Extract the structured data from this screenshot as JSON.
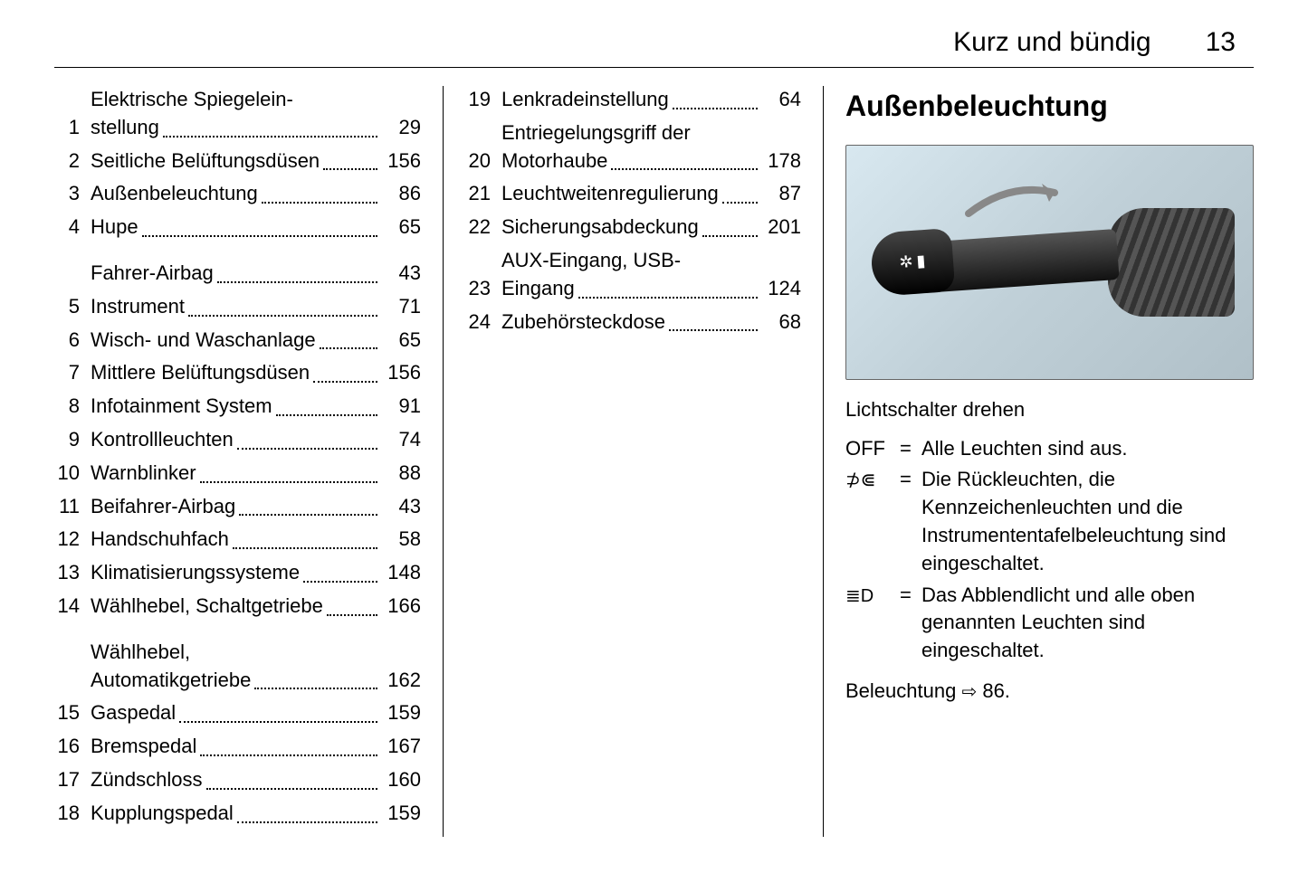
{
  "header": {
    "title": "Kurz und bündig",
    "page_number": "13"
  },
  "toc_col1": [
    {
      "num": "1",
      "label_lines": [
        "Elektrische Spiegelein-",
        "stellung"
      ],
      "page": "29"
    },
    {
      "num": "2",
      "label_lines": [
        "Seitliche Belüftungsdüsen"
      ],
      "page": "156"
    },
    {
      "num": "3",
      "label_lines": [
        "Außenbeleuchtung"
      ],
      "page": "86"
    },
    {
      "num": "4",
      "label_lines": [
        "Hupe"
      ],
      "page": "65"
    },
    {
      "num": "",
      "label_lines": [
        "Fahrer-Airbag"
      ],
      "page": "43",
      "gap_before": true
    },
    {
      "num": "5",
      "label_lines": [
        "Instrument"
      ],
      "page": "71"
    },
    {
      "num": "6",
      "label_lines": [
        "Wisch- und Waschanlage"
      ],
      "page": "65"
    },
    {
      "num": "7",
      "label_lines": [
        "Mittlere Belüftungsdüsen"
      ],
      "page": "156"
    },
    {
      "num": "8",
      "label_lines": [
        "Infotainment System"
      ],
      "page": "91"
    },
    {
      "num": "9",
      "label_lines": [
        "Kontrollleuchten"
      ],
      "page": "74"
    },
    {
      "num": "10",
      "label_lines": [
        "Warnblinker"
      ],
      "page": "88"
    },
    {
      "num": "11",
      "label_lines": [
        "Beifahrer-Airbag"
      ],
      "page": "43"
    },
    {
      "num": "12",
      "label_lines": [
        "Handschuhfach"
      ],
      "page": "58"
    },
    {
      "num": "13",
      "label_lines": [
        "Klimatisierungssysteme"
      ],
      "page": "148"
    },
    {
      "num": "14",
      "label_lines": [
        "Wählhebel, Schaltgetriebe"
      ],
      "page": "166"
    },
    {
      "num": "",
      "label_lines": [
        "Wählhebel,",
        "Automatikgetriebe"
      ],
      "page": "162",
      "gap_before": true
    },
    {
      "num": "15",
      "label_lines": [
        "Gaspedal"
      ],
      "page": "159"
    },
    {
      "num": "16",
      "label_lines": [
        "Bremspedal"
      ],
      "page": "167"
    },
    {
      "num": "17",
      "label_lines": [
        "Zündschloss"
      ],
      "page": "160"
    },
    {
      "num": "18",
      "label_lines": [
        "Kupplungspedal"
      ],
      "page": "159"
    }
  ],
  "toc_col2": [
    {
      "num": "19",
      "label_lines": [
        "Lenkradeinstellung"
      ],
      "page": "64"
    },
    {
      "num": "20",
      "label_lines": [
        "Entriegelungsgriff der",
        "Motorhaube"
      ],
      "page": "178"
    },
    {
      "num": "21",
      "label_lines": [
        "Leuchtweitenregulierung"
      ],
      "page": "87"
    },
    {
      "num": "22",
      "label_lines": [
        "Sicherungsabdeckung"
      ],
      "page": "201"
    },
    {
      "num": "23",
      "label_lines": [
        "AUX-Eingang, USB-",
        "Eingang"
      ],
      "page": "124"
    },
    {
      "num": "24",
      "label_lines": [
        "Zubehörsteckdose"
      ],
      "page": "68"
    }
  ],
  "col3": {
    "section_title": "Außenbeleuchtung",
    "caption": "Lichtschalter drehen",
    "definitions": [
      {
        "symbol": "OFF",
        "text": "Alle Leuchten sind aus."
      },
      {
        "symbol": "park",
        "text": "Die Rückleuchten, die Kennzeichenleuchten und die Instrumententafelbeleuchtung sind eingeschaltet."
      },
      {
        "symbol": "low",
        "text": "Das Abblendlicht und alle oben genannten Leuchten sind eingeschaltet."
      }
    ],
    "footnote_prefix": "Beleuchtung ",
    "footnote_page": "86."
  },
  "symbols": {
    "park_glyph": "⛭",
    "low_glyph": "≣D",
    "arrow_ref": "⇨"
  },
  "colors": {
    "text": "#000000",
    "background": "#ffffff",
    "figure_bg_light": "#d8e8f0",
    "figure_bg_dark": "#b0c0c8",
    "stalk_dark": "#111111",
    "arrow": "#888888"
  }
}
